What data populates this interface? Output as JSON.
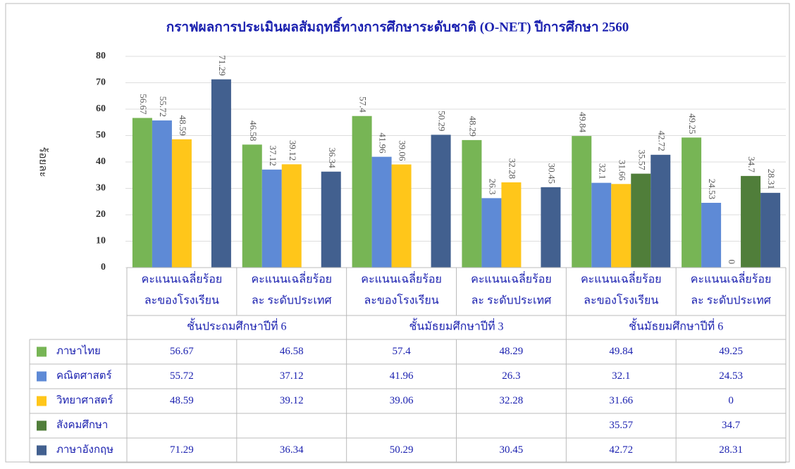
{
  "chart_data": {
    "type": "bar",
    "title": "กราฟผลการประเมินผลสัมฤทธิ์ทางการศึกษาระดับชาติ (O-NET) ปีการศึกษา 2560",
    "ylabel": "ร้อยละ",
    "categories": [
      [
        "คะแนนเฉลี่ยร้อย",
        "ละของโรงเรียน"
      ],
      [
        "คะแนนเฉลี่ยร้อย",
        "ละ ระดับประเทศ"
      ],
      [
        "คะแนนเฉลี่ยร้อย",
        "ละของโรงเรียน"
      ],
      [
        "คะแนนเฉลี่ยร้อย",
        "ละ ระดับประเทศ"
      ],
      [
        "คะแนนเฉลี่ยร้อย",
        "ละของโรงเรียน"
      ],
      [
        "คะแนนเฉลี่ยร้อย",
        "ละ ระดับประเทศ"
      ]
    ],
    "groups": [
      "ชั้นประถมศึกษาปีที่ 6",
      "ชั้นมัธยมศึกษาปีที่ 3",
      "ชั้นมัธยมศึกษาปีที่ 6"
    ],
    "series": [
      {
        "name": "ภาษาไทย",
        "color": "#77b555",
        "values": [
          56.67,
          46.58,
          57.4,
          48.29,
          49.84,
          49.25
        ]
      },
      {
        "name": "คณิตศาสตร์",
        "color": "#5e8ad6",
        "values": [
          55.72,
          37.12,
          41.96,
          26.3,
          32.1,
          24.53
        ]
      },
      {
        "name": "วิทยาศาสตร์",
        "color": "#ffc61a",
        "values": [
          48.59,
          39.12,
          39.06,
          32.28,
          31.66,
          0
        ]
      },
      {
        "name": "สังคมศึกษา",
        "color": "#507e3a",
        "values": [
          null,
          null,
          null,
          null,
          35.57,
          34.7
        ]
      },
      {
        "name": "ภาษาอังกฤษ",
        "color": "#42608f",
        "values": [
          71.29,
          36.34,
          50.29,
          30.45,
          42.72,
          28.31
        ]
      }
    ],
    "ylim": [
      0,
      80
    ],
    "yticks": [
      0,
      10,
      20,
      30,
      40,
      50,
      60,
      70,
      80
    ],
    "grid": true
  }
}
